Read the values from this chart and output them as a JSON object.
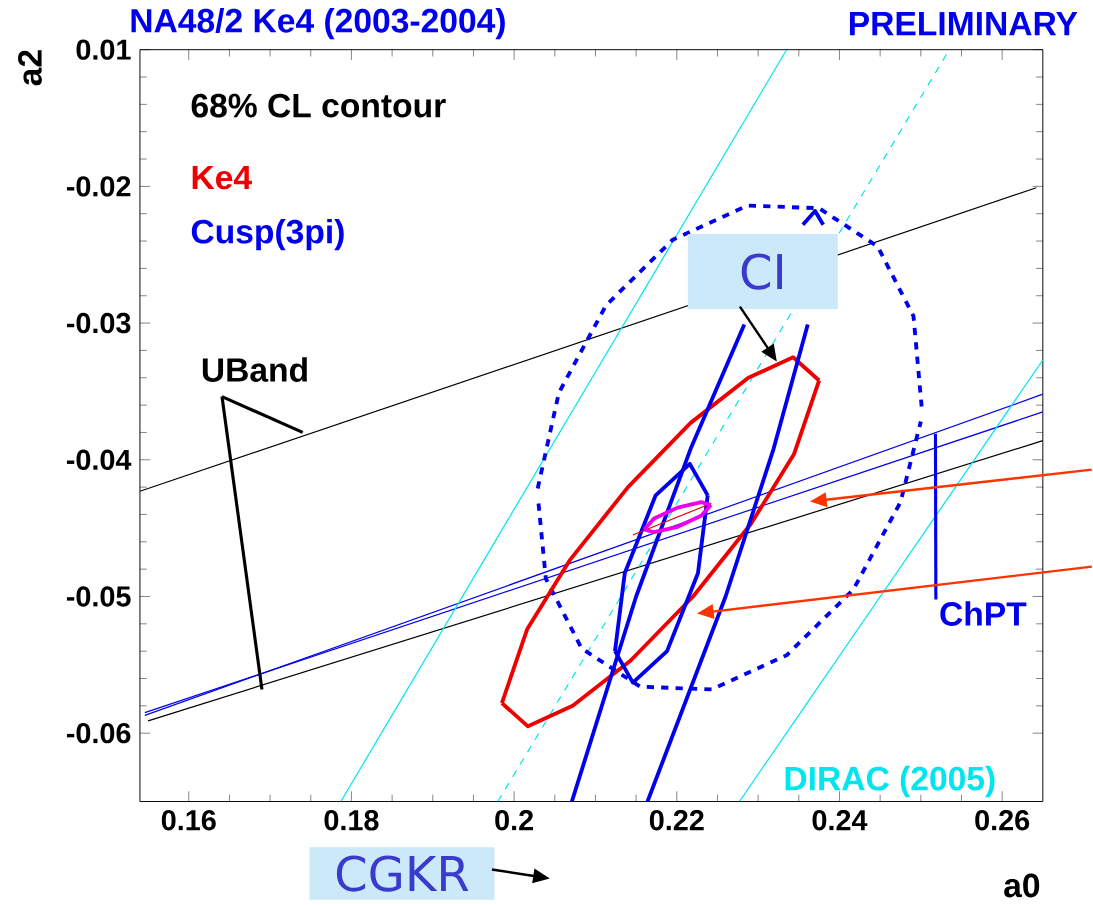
{
  "chart_data": {
    "type": "line",
    "title": "NA48/2 Ke4 (2003-2004)",
    "subtitle": "PRELIMINARY",
    "xlabel": "a0",
    "ylabel": "a2",
    "legend_title": "68% CL contour",
    "legend": "top left",
    "xlim": [
      0.154,
      0.265
    ],
    "ylim": [
      -0.065,
      -0.01
    ],
    "xticks": [
      0.16,
      0.18,
      0.2,
      0.22,
      0.24,
      0.26
    ],
    "yticks": [
      -0.06,
      -0.05,
      -0.04,
      -0.03,
      -0.02,
      {
        "value": -0.01,
        "label": "0.01"
      }
    ],
    "grid": false,
    "annotations": [
      {
        "text": "UBand",
        "x": 0.174,
        "y": -0.038
      },
      "CI",
      "CGKR",
      {
        "text": "ChPT",
        "x": 0.2518,
        "y": -0.0381
      },
      "DIRAC (2005)"
    ],
    "series": [
      {
        "color": "#000000",
        "x": [
          0.154,
          0.2642
        ],
        "values": [
          -0.0423,
          -0.0201
        ]
      },
      {
        "color": "#000000",
        "x": [
          0.155,
          0.265
        ],
        "values": [
          -0.0591,
          -0.0386
        ]
      },
      {
        "color": "#0000ee",
        "x": [
          0.1546,
          0.265
        ],
        "values": [
          -0.0587,
          -0.0352
        ]
      },
      {
        "color": "#0000ee",
        "x": [
          0.1546,
          0.265
        ],
        "values": [
          -0.0585,
          -0.0365
        ]
      },
      {
        "color": "#00e5ee",
        "x": [
          0.1787,
          0.2335
        ],
        "values": [
          -0.065,
          -0.01
        ]
      },
      {
        "color": "#00e5ee",
        "x": [
          0.198,
          0.2535
        ],
        "values": [
          -0.065,
          -0.01
        ],
        "line_style": "dashed"
      },
      {
        "color": "#00e5ee",
        "x": [
          0.2277,
          0.265
        ],
        "values": [
          -0.065,
          -0.0327
        ]
      },
      {
        "color": "#0000ee",
        "line_style": "dashed",
        "x": [
          0.2029,
          0.2055,
          0.2113,
          0.2195,
          0.2287,
          0.2375,
          0.2447,
          0.2491,
          0.2501
        ],
        "values": [
          -0.0421,
          -0.0351,
          -0.0287,
          -0.0239,
          -0.0214,
          -0.0216,
          -0.0244,
          -0.0295,
          -0.0361
        ]
      },
      {
        "color": "#0000ee",
        "line_style": "dashed",
        "x": [
          0.203,
          0.2039,
          0.2083,
          0.2155,
          0.2243,
          0.2335,
          0.2417,
          0.2475,
          0.25
        ],
        "values": [
          -0.0432,
          -0.0487,
          -0.0538,
          -0.0566,
          -0.0568,
          -0.0543,
          -0.0495,
          -0.0431,
          -0.0372
        ]
      },
      {
        "name": "Ke4",
        "color": "#ee0000",
        "x": [
          0.1985,
          0.2016,
          0.2069,
          0.214,
          0.2217,
          0.2288,
          0.2343,
          0.2375
        ],
        "values": [
          -0.0578,
          -0.0524,
          -0.0473,
          -0.042,
          -0.0373,
          -0.034,
          -0.0325,
          -0.0342
        ]
      },
      {
        "color": "#ee0000",
        "x": [
          0.1985,
          0.2017,
          0.2072,
          0.2143,
          0.222,
          0.2291,
          0.2344,
          0.2375
        ],
        "values": [
          -0.0578,
          -0.0595,
          -0.058,
          -0.0547,
          -0.05,
          -0.0447,
          -0.0396,
          -0.0342
        ]
      },
      {
        "name": "Cusp(3pi)",
        "color": "#0000ee",
        "x": [
          0.2071,
          0.215,
          0.2217,
          0.2283,
          0.2336,
          0.2355,
          0.237,
          0.238
        ],
        "values": [
          -0.065,
          -0.05,
          -0.0392,
          -0.0301,
          null,
          -0.0228,
          -0.0218,
          -0.0228
        ]
      },
      {
        "color": "#0000ee",
        "x": [
          0.2164,
          0.226,
          0.2319,
          0.2361
        ],
        "values": [
          -0.065,
          -0.05,
          -0.0392,
          -0.0301
        ]
      },
      {
        "color": "#0000ee",
        "x": [
          0.2124,
          0.2136,
          0.2174,
          0.2216,
          0.2238
        ],
        "values": [
          -0.054,
          -0.0483,
          -0.0426,
          -0.0403,
          -0.0426
        ]
      },
      {
        "color": "#0000ee",
        "x": [
          0.2124,
          0.2146,
          0.2188,
          0.2226,
          0.2238
        ],
        "values": [
          -0.054,
          -0.0563,
          -0.054,
          -0.0483,
          -0.0426
        ]
      },
      {
        "color": "#ee0000",
        "x": [
          0.2146,
          0.2242
        ],
        "values": [
          -0.0455,
          -0.0432
        ]
      },
      {
        "color": "#ee00ee",
        "x": [
          0.216,
          0.2172,
          0.2201,
          0.223,
          0.2242
        ],
        "values": [
          -0.0451,
          -0.0443,
          -0.0435,
          -0.0431,
          -0.0433
        ]
      },
      {
        "color": "#ee00ee",
        "x": [
          0.216,
          0.2172,
          0.2201,
          0.223,
          0.2242
        ],
        "values": [
          -0.0451,
          -0.0453,
          -0.0449,
          -0.0441,
          -0.0433
        ]
      }
    ]
  }
}
